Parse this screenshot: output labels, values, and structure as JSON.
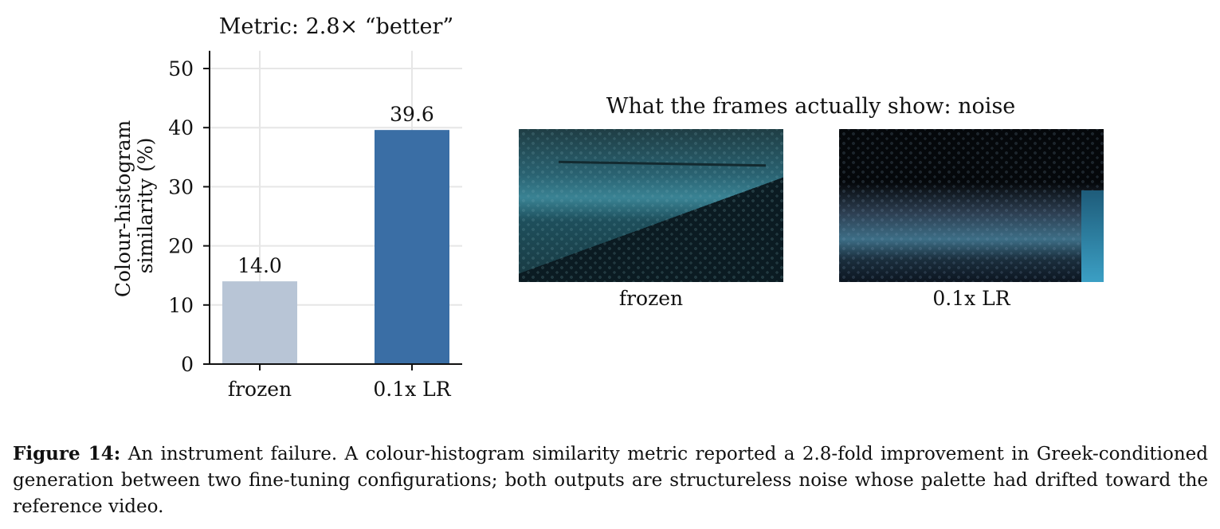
{
  "chart_data": {
    "type": "bar",
    "title": "Metric: 2.8× “better”",
    "categories": [
      "frozen",
      "0.1x LR"
    ],
    "values": [
      14.0,
      39.6
    ],
    "value_labels": [
      "14.0",
      "39.6"
    ],
    "colors": [
      "#b8c5d6",
      "#3a6ea5"
    ],
    "ylabel_lines": [
      "Colour-histogram",
      "similarity (%)"
    ],
    "ylim": [
      0,
      53
    ],
    "yticks": [
      0,
      10,
      20,
      30,
      40,
      50
    ],
    "grid": true
  },
  "frames_panel": {
    "title": "What the frames actually show: noise",
    "frames": [
      {
        "label": "frozen"
      },
      {
        "label": "0.1x LR"
      }
    ]
  },
  "caption": {
    "label": "Figure 14:",
    "text": "An instrument failure. A colour-histogram similarity metric reported a 2.8-fold improvement in Greek-conditioned generation between two fine-tuning configurations; both outputs are structureless noise whose palette had drifted toward the reference video."
  }
}
